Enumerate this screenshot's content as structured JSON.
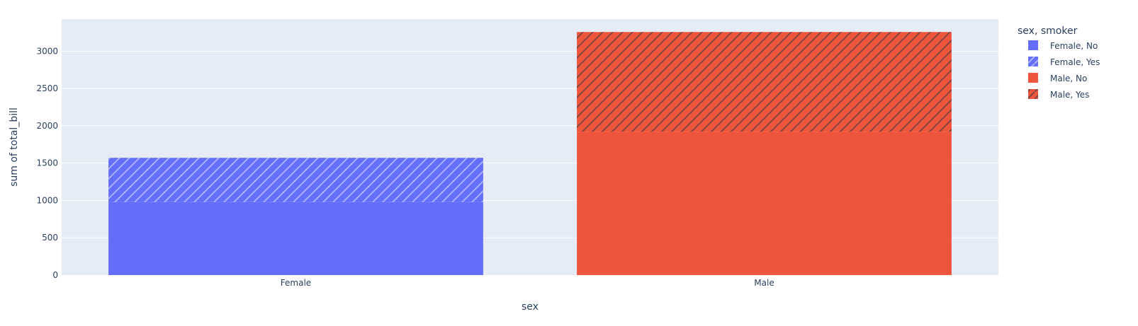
{
  "chart_data": {
    "type": "bar",
    "barmode": "stack",
    "title": "",
    "xlabel": "sex",
    "ylabel": "sum of total_bill",
    "categories": [
      "Female",
      "Male"
    ],
    "ylim": [
      0,
      3430
    ],
    "yticks": [
      0,
      500,
      1000,
      1500,
      2000,
      2500,
      3000
    ],
    "grid": true,
    "legend_title": "sex, smoker",
    "legend_position": "right",
    "series": [
      {
        "name": "Female, No",
        "color": "#636efa",
        "pattern": "none",
        "values": [
          977.68,
          0
        ]
      },
      {
        "name": "Female, Yes",
        "color": "#636efa",
        "pattern": "diagonal",
        "values": [
          593.27,
          0
        ]
      },
      {
        "name": "Male, No",
        "color": "#EF553B",
        "pattern": "none",
        "values": [
          0,
          1919.75
        ]
      },
      {
        "name": "Male, Yes",
        "color": "#EF553B",
        "pattern": "diagonal",
        "values": [
          0,
          1337.07
        ]
      }
    ]
  }
}
